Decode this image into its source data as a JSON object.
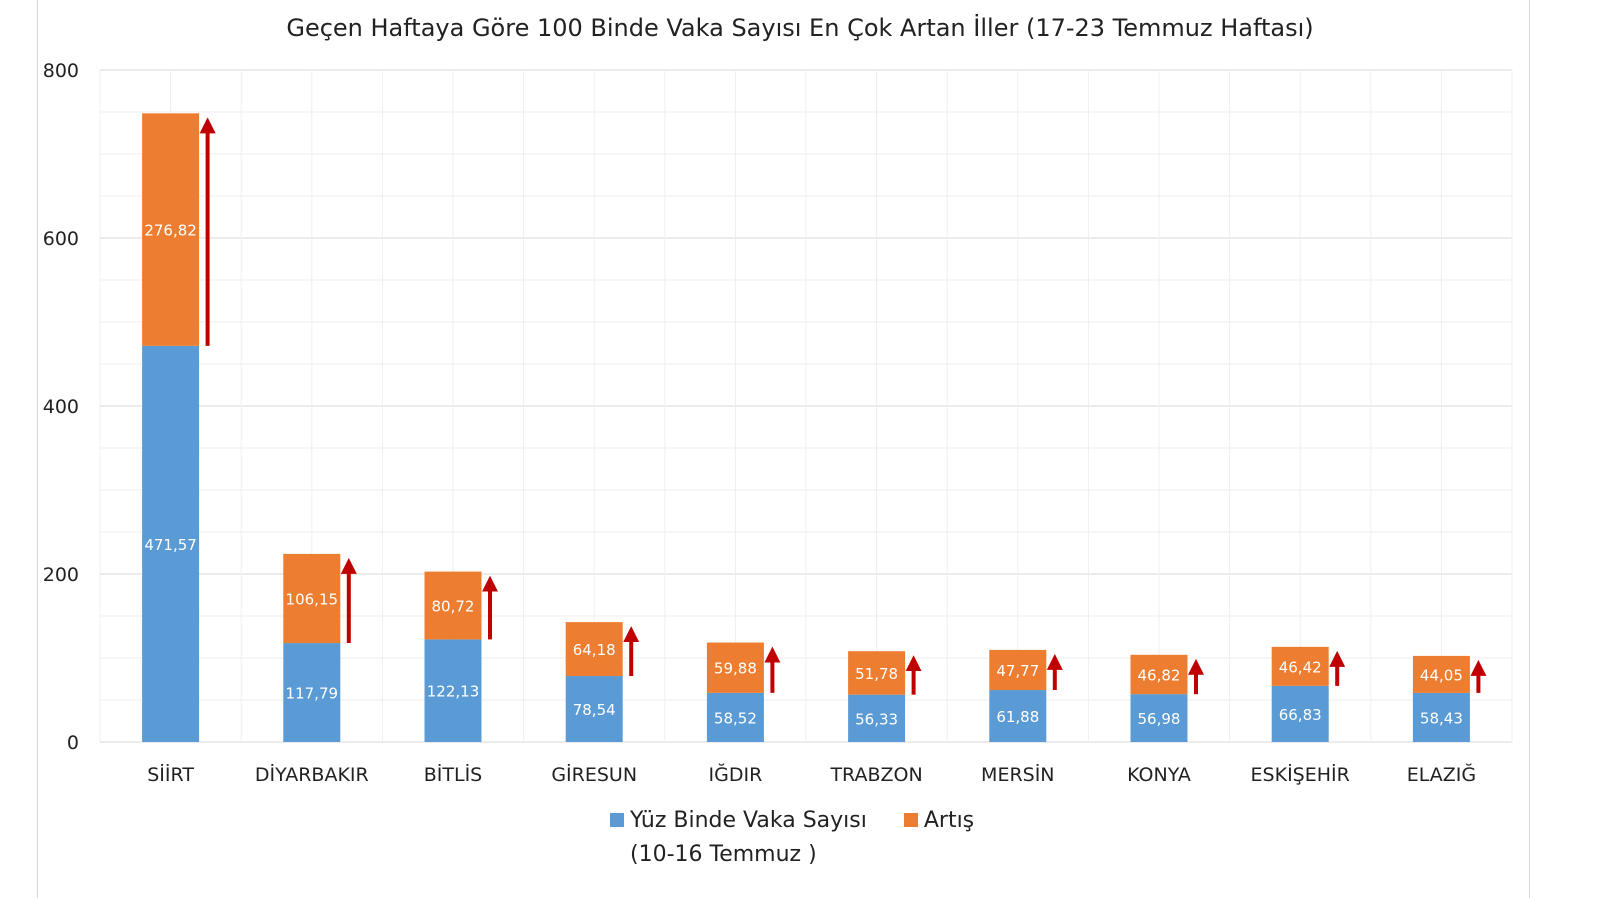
{
  "chart_data": {
    "type": "bar",
    "stacked": true,
    "title": "Geçen Haftaya Göre 100 Binde Vaka Sayısı En Çok Artan İller (17-23 Temmuz Haftası)",
    "xlabel": "",
    "ylabel": "",
    "ylim": [
      0,
      800
    ],
    "yticks": [
      0,
      200,
      400,
      600,
      800
    ],
    "grid": true,
    "legend_position": "bottom",
    "categories": [
      "SİİRT",
      "DİYARBAKIR",
      "BİTLİS",
      "GİRESUN",
      "IĞDIR",
      "TRABZON",
      "MERSİN",
      "KONYA",
      "ESKİŞEHİR",
      "ELAZIĞ"
    ],
    "series": [
      {
        "name": "Yüz Binde Vaka Sayısı (10-16 Temmuz )",
        "name_line1": "Yüz Binde Vaka Sayısı",
        "name_line2": "(10-16 Temmuz )",
        "color": "#5b9bd5",
        "values": [
          471.57,
          117.79,
          122.13,
          78.54,
          58.52,
          56.33,
          61.88,
          56.98,
          66.83,
          58.43
        ],
        "labels": [
          "471,57",
          "117,79",
          "122,13",
          "78,54",
          "58,52",
          "56,33",
          "61,88",
          "56,98",
          "66,83",
          "58,43"
        ]
      },
      {
        "name": "Artış",
        "color": "#ed7d31",
        "values": [
          276.82,
          106.15,
          80.72,
          64.18,
          59.88,
          51.78,
          47.77,
          46.82,
          46.42,
          44.05
        ],
        "labels": [
          "276,82",
          "106,15",
          "80,72",
          "64,18",
          "59,88",
          "51,78",
          "47,77",
          "46,82",
          "46,42",
          "44,05"
        ]
      }
    ],
    "annotations": {
      "increase_arrow_color": "#c00000",
      "increase_arrow_icon": "arrow-up-icon"
    }
  }
}
